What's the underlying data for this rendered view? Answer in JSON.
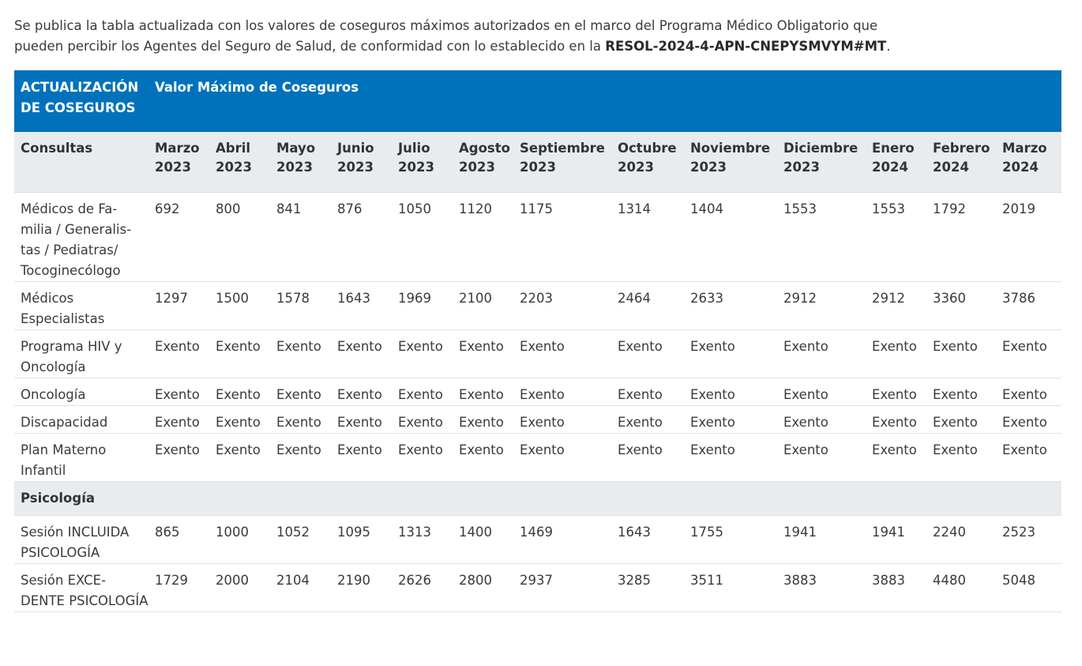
{
  "intro": {
    "text_before": "Se publica la tabla actualizada con los valores de coseguros máximos autorizados en el marco del Programa Médico Obligatorio que pueden percibir los Agentes del Seguro de Salud, de conformidad con lo establecido en la ",
    "resolution": "RESOL-2024-4-APN-CNEPYSMVYM#MT",
    "text_after": "."
  },
  "table": {
    "header_left": "ACTUALIZACIÓN DE COSEGUROS",
    "header_right": "Valor Máximo de Coseguros",
    "section1": "Consultas",
    "months": [
      "Marzo 2023",
      "Abril 2023",
      "Mayo 2023",
      "Junio 2023",
      "Julio 2023",
      "Agosto 2023",
      "Septiembre 2023",
      "Octubre 2023",
      "Noviembre 2023",
      "Diciembre 2023",
      "Enero 2024",
      "Febrero 2024",
      "Marzo 2024"
    ],
    "rows1": [
      {
        "label": "Médicos de Fa-milia / Generalis-tas / Pediatras/ Tocoginecólogo",
        "values": [
          "692",
          "800",
          "841",
          "876",
          "1050",
          "1120",
          "1175",
          "1314",
          "1404",
          "1553",
          "1553",
          "1792",
          "2019"
        ]
      },
      {
        "label": "Médicos Especialistas",
        "values": [
          "1297",
          "1500",
          "1578",
          "1643",
          "1969",
          "2100",
          "2203",
          "2464",
          "2633",
          "2912",
          "2912",
          "3360",
          "3786"
        ]
      },
      {
        "label": "Programa HIV y Oncología",
        "values": [
          "Exento",
          "Exento",
          "Exento",
          "Exento",
          "Exento",
          "Exento",
          "Exento",
          "Exento",
          "Exento",
          "Exento",
          "Exento",
          "Exento",
          "Exento"
        ]
      },
      {
        "label": "Oncología",
        "values": [
          "Exento",
          "Exento",
          "Exento",
          "Exento",
          "Exento",
          "Exento",
          "Exento",
          "Exento",
          "Exento",
          "Exento",
          "Exento",
          "Exento",
          "Exento"
        ]
      },
      {
        "label": "Discapacidad",
        "values": [
          "Exento",
          "Exento",
          "Exento",
          "Exento",
          "Exento",
          "Exento",
          "Exento",
          "Exento",
          "Exento",
          "Exento",
          "Exento",
          "Exento",
          "Exento"
        ]
      },
      {
        "label": "Plan Materno Infantil",
        "values": [
          "Exento",
          "Exento",
          "Exento",
          "Exento",
          "Exento",
          "Exento",
          "Exento",
          "Exento",
          "Exento",
          "Exento",
          "Exento",
          "Exento",
          "Exento"
        ]
      }
    ],
    "section2": "Psicología",
    "rows2": [
      {
        "label": "Sesión INCLUIDA PSICOLOGÍA",
        "values": [
          "865",
          "1000",
          "1052",
          "1095",
          "1313",
          "1400",
          "1469",
          "1643",
          "1755",
          "1941",
          "1941",
          "2240",
          "2523"
        ]
      },
      {
        "label": "Sesión EXCE-DENTE PSICOLOGÍA",
        "values": [
          "1729",
          "2000",
          "2104",
          "2190",
          "2626",
          "2800",
          "2937",
          "3285",
          "3511",
          "3883",
          "3883",
          "4480",
          "5048"
        ]
      }
    ]
  }
}
